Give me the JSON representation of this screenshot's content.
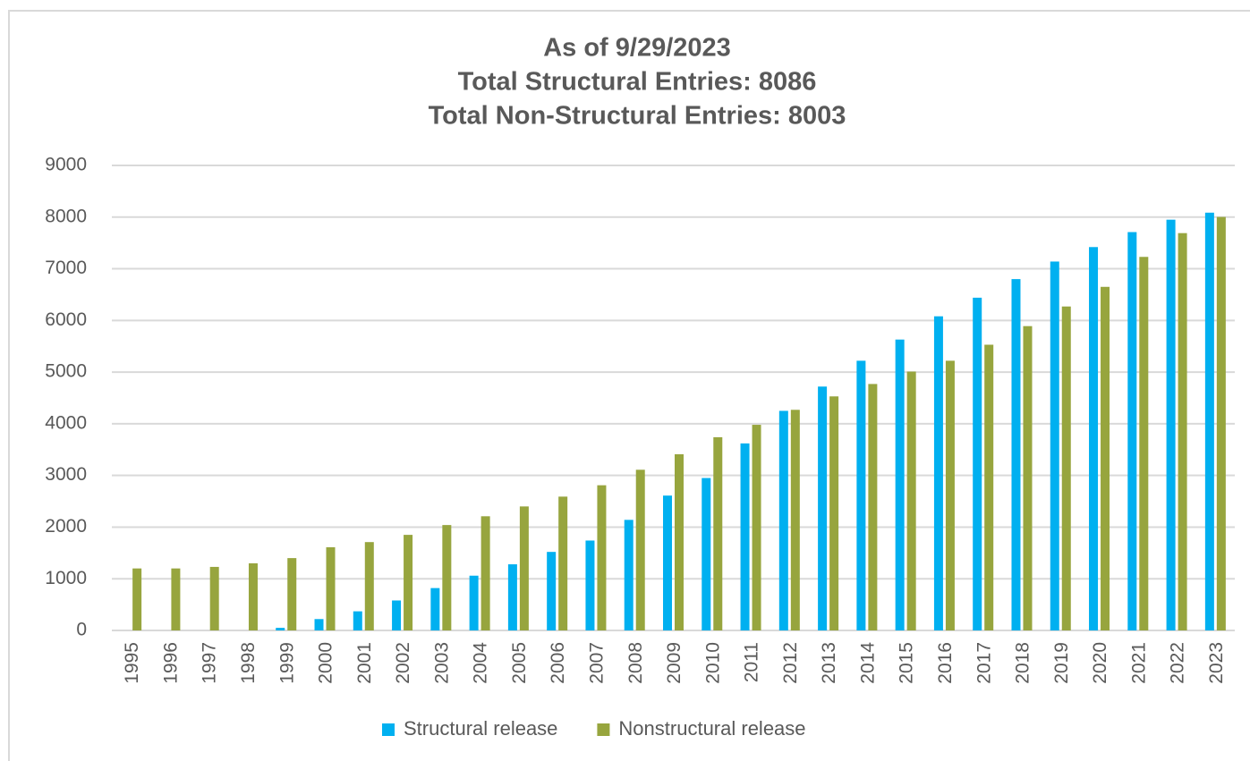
{
  "chart_data": {
    "type": "bar",
    "title": [
      "As of 9/29/2023",
      "Total Structural Entries: 8086",
      "Total Non-Structural Entries: 8003"
    ],
    "categories": [
      "1995",
      "1996",
      "1997",
      "1998",
      "1999",
      "2000",
      "2001",
      "2002",
      "2003",
      "2004",
      "2005",
      "2006",
      "2007",
      "2008",
      "2009",
      "2010",
      "2011",
      "2012",
      "2013",
      "2014",
      "2015",
      "2016",
      "2017",
      "2018",
      "2019",
      "2020",
      "2021",
      "2022",
      "2023"
    ],
    "series": [
      {
        "name": "Structural release",
        "color": "#00b0f0",
        "values": [
          0,
          0,
          0,
          0,
          50,
          220,
          370,
          580,
          820,
          1060,
          1280,
          1520,
          1740,
          2140,
          2610,
          2950,
          3620,
          4250,
          4720,
          5220,
          5630,
          6080,
          6440,
          6800,
          7140,
          7420,
          7710,
          7950,
          8086
        ]
      },
      {
        "name": "Nonstructural release",
        "color": "#97a53e",
        "values": [
          1200,
          1200,
          1230,
          1300,
          1400,
          1610,
          1710,
          1850,
          2040,
          2210,
          2400,
          2590,
          2810,
          3110,
          3410,
          3740,
          3980,
          4270,
          4530,
          4770,
          5010,
          5220,
          5530,
          5890,
          6270,
          6650,
          7230,
          7690,
          8003
        ]
      }
    ],
    "ylim": [
      0,
      9000
    ],
    "yticks": [
      0,
      1000,
      2000,
      3000,
      4000,
      5000,
      6000,
      7000,
      8000,
      9000
    ],
    "grid": true,
    "legend": "bottom"
  }
}
